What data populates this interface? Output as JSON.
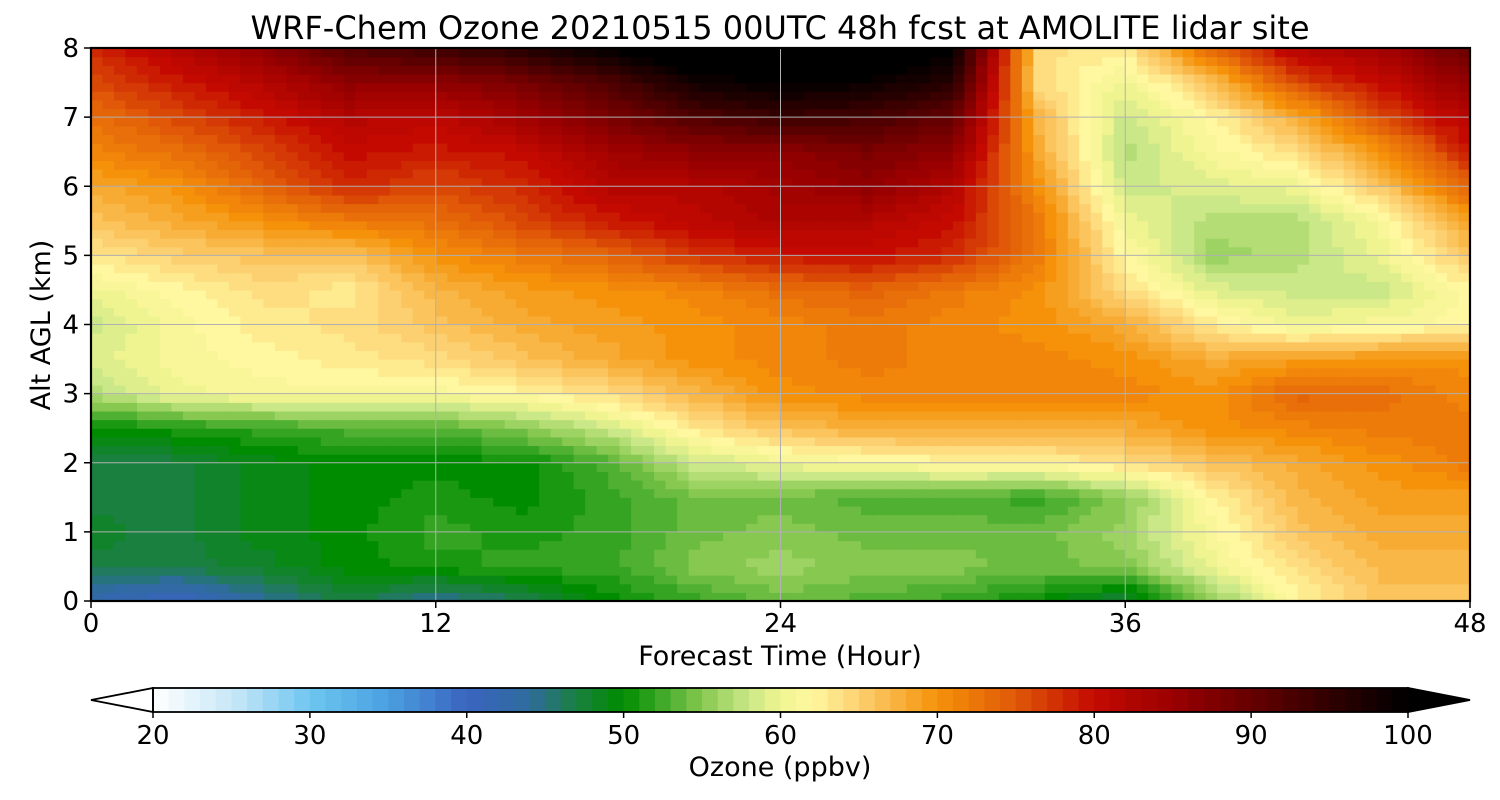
{
  "chart_data": {
    "type": "heatmap",
    "title": "WRF-Chem Ozone  20210515 00UTC 48h fcst at AMOLITE lidar site",
    "xlabel": "Forecast Time (Hour)",
    "ylabel": "Alt AGL (km)",
    "xlim": [
      0,
      48
    ],
    "ylim": [
      0,
      8
    ],
    "xticks": [
      0,
      12,
      24,
      36,
      48
    ],
    "yticks": [
      0,
      1,
      2,
      3,
      4,
      5,
      6,
      7,
      8
    ],
    "grid": true,
    "colorbar": {
      "label": "Ozone  (ppbv)",
      "range": [
        20,
        100
      ],
      "ticks": [
        20,
        30,
        40,
        50,
        60,
        70,
        80,
        90,
        100
      ],
      "extend": "both",
      "stops": [
        {
          "v": 20,
          "color": "#ffffff"
        },
        {
          "v": 25,
          "color": "#c8e8f8"
        },
        {
          "v": 30,
          "color": "#6ec6f0"
        },
        {
          "v": 35,
          "color": "#4aa0e0"
        },
        {
          "v": 40,
          "color": "#3a64c0"
        },
        {
          "v": 44,
          "color": "#2e6c9c"
        },
        {
          "v": 47,
          "color": "#1a8040"
        },
        {
          "v": 50,
          "color": "#008c00"
        },
        {
          "v": 52,
          "color": "#34a422"
        },
        {
          "v": 55,
          "color": "#86c850"
        },
        {
          "v": 58,
          "color": "#cbe888"
        },
        {
          "v": 60,
          "color": "#f0f490"
        },
        {
          "v": 62,
          "color": "#fff8a0"
        },
        {
          "v": 65,
          "color": "#fcd070"
        },
        {
          "v": 70,
          "color": "#f5920a"
        },
        {
          "v": 75,
          "color": "#e05808"
        },
        {
          "v": 80,
          "color": "#c40a00"
        },
        {
          "v": 85,
          "color": "#9a0000"
        },
        {
          "v": 90,
          "color": "#660000"
        },
        {
          "v": 95,
          "color": "#300000"
        },
        {
          "v": 100,
          "color": "#000000"
        }
      ]
    },
    "x": [
      0,
      3,
      6,
      9,
      12,
      15,
      18,
      21,
      24,
      27,
      30,
      33,
      36,
      39,
      42,
      45,
      48
    ],
    "y": [
      0,
      0.5,
      1,
      1.5,
      2,
      2.5,
      3,
      3.5,
      4,
      4.5,
      5,
      5.5,
      6,
      6.5,
      7,
      7.5,
      8
    ],
    "z": [
      [
        42,
        40,
        44,
        47,
        44,
        46,
        50,
        52,
        54,
        53,
        52,
        50,
        47,
        55,
        62,
        66,
        66
      ],
      [
        47,
        47,
        48,
        50,
        51,
        52,
        52,
        55,
        56,
        55,
        55,
        54,
        55,
        60,
        64,
        67,
        67
      ],
      [
        48,
        47,
        49,
        50,
        52,
        51,
        52,
        54,
        55,
        54,
        54,
        54,
        56,
        61,
        66,
        68,
        68
      ],
      [
        47,
        47,
        49,
        50,
        51,
        50,
        52,
        54,
        54,
        53,
        53,
        52,
        55,
        62,
        67,
        69,
        69
      ],
      [
        47,
        47,
        49,
        50,
        50,
        50,
        53,
        58,
        60,
        61,
        62,
        62,
        64,
        66,
        68,
        70,
        72
      ],
      [
        50,
        51,
        52,
        53,
        53,
        55,
        58,
        63,
        66,
        68,
        68,
        68,
        68,
        70,
        71,
        72,
        72
      ],
      [
        57,
        60,
        61,
        61,
        61,
        62,
        64,
        67,
        70,
        71,
        71,
        71,
        71,
        70,
        74,
        73,
        71
      ],
      [
        59,
        61,
        62,
        63,
        64,
        66,
        68,
        70,
        71,
        72,
        71,
        71,
        70,
        68,
        69,
        70,
        70
      ],
      [
        58,
        61,
        63,
        64,
        66,
        68,
        69,
        70,
        71,
        72,
        71,
        70,
        68,
        63,
        60,
        61,
        62
      ],
      [
        60,
        62,
        64,
        63,
        67,
        69,
        70,
        71,
        73,
        74,
        72,
        70,
        64,
        59,
        58,
        58,
        62
      ],
      [
        63,
        65,
        66,
        66,
        70,
        72,
        74,
        77,
        79,
        80,
        78,
        72,
        62,
        56,
        57,
        60,
        66
      ],
      [
        66,
        68,
        70,
        72,
        73,
        76,
        79,
        81,
        83,
        82,
        80,
        72,
        60,
        57,
        57,
        61,
        69
      ],
      [
        68,
        70,
        74,
        78,
        76,
        78,
        82,
        82,
        84,
        86,
        82,
        70,
        58,
        59,
        60,
        66,
        74
      ],
      [
        71,
        73,
        76,
        80,
        79,
        80,
        84,
        86,
        86,
        88,
        86,
        68,
        57,
        61,
        64,
        70,
        79
      ],
      [
        73,
        76,
        79,
        82,
        81,
        84,
        88,
        92,
        94,
        93,
        90,
        67,
        58,
        62,
        68,
        76,
        82
      ],
      [
        76,
        79,
        82,
        86,
        86,
        88,
        92,
        98,
        100,
        99,
        96,
        64,
        60,
        66,
        76,
        80,
        86
      ],
      [
        78,
        82,
        86,
        92,
        94,
        96,
        100,
        104,
        104,
        104,
        100,
        64,
        63,
        74,
        82,
        84,
        90
      ]
    ]
  }
}
